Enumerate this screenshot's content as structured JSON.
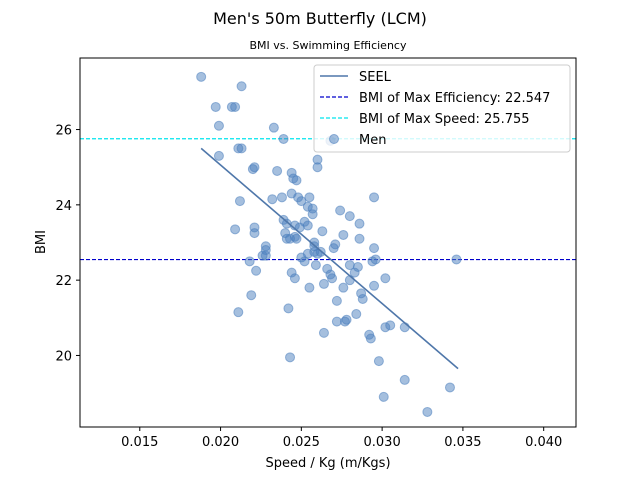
{
  "chart_data": {
    "type": "scatter",
    "title": "Men's 50m Butterfly (LCM)",
    "subtitle": "BMI vs. Swimming Efficiency",
    "xlabel": "Speed / Kg (m/Kgs)",
    "ylabel": "BMI",
    "xlim": [
      0.0113,
      0.042
    ],
    "ylim": [
      18.1,
      27.9
    ],
    "xticks": [
      "0.015",
      "0.020",
      "0.025",
      "0.030",
      "0.035",
      "0.040"
    ],
    "xtick_values": [
      0.015,
      0.02,
      0.025,
      0.03,
      0.035,
      0.04
    ],
    "yticks": [
      "20",
      "22",
      "24",
      "26"
    ],
    "ytick_values": [
      20,
      22,
      24,
      26
    ],
    "grid": false,
    "legend_position": "top-right",
    "legend": [
      {
        "label": "SEEL",
        "kind": "line",
        "color": "#4f77aa"
      },
      {
        "label": "BMI of Max Efficiency: 22.547",
        "kind": "dashed-line",
        "color": "#0000cc"
      },
      {
        "label": "BMI of Max Speed: 25.755",
        "kind": "dashed-line",
        "color": "#00e5ee"
      },
      {
        "label": "Men",
        "kind": "marker",
        "color": "#4c7fbe"
      }
    ],
    "seel_line": {
      "x": [
        0.0188,
        0.0347
      ],
      "y": [
        25.5,
        19.65
      ],
      "color": "#4f77aa"
    },
    "hlines": [
      {
        "y": 22.547,
        "color": "#0000cc"
      },
      {
        "y": 25.755,
        "color": "#00e5ee"
      }
    ],
    "series": [
      {
        "name": "Men",
        "color": "#4c7fbe",
        "points": [
          [
            0.0188,
            27.4
          ],
          [
            0.0197,
            26.6
          ],
          [
            0.0199,
            26.1
          ],
          [
            0.0207,
            26.6
          ],
          [
            0.0209,
            26.6
          ],
          [
            0.0213,
            27.15
          ],
          [
            0.0199,
            25.3
          ],
          [
            0.0211,
            25.5
          ],
          [
            0.0213,
            25.5
          ],
          [
            0.0233,
            26.05
          ],
          [
            0.0239,
            25.75
          ],
          [
            0.0268,
            25.7
          ],
          [
            0.026,
            25.2
          ],
          [
            0.026,
            25.0
          ],
          [
            0.022,
            24.95
          ],
          [
            0.0221,
            25.0
          ],
          [
            0.0235,
            24.9
          ],
          [
            0.0244,
            24.85
          ],
          [
            0.0245,
            24.7
          ],
          [
            0.0247,
            24.65
          ],
          [
            0.0238,
            24.2
          ],
          [
            0.0244,
            24.3
          ],
          [
            0.0248,
            24.2
          ],
          [
            0.025,
            24.1
          ],
          [
            0.0255,
            24.2
          ],
          [
            0.0212,
            24.1
          ],
          [
            0.0232,
            24.15
          ],
          [
            0.0254,
            23.95
          ],
          [
            0.0257,
            23.9
          ],
          [
            0.0257,
            23.75
          ],
          [
            0.0274,
            23.85
          ],
          [
            0.028,
            23.7
          ],
          [
            0.0286,
            23.5
          ],
          [
            0.0295,
            24.2
          ],
          [
            0.0239,
            23.6
          ],
          [
            0.0241,
            23.5
          ],
          [
            0.0246,
            23.45
          ],
          [
            0.0249,
            23.4
          ],
          [
            0.0252,
            23.55
          ],
          [
            0.0254,
            23.45
          ],
          [
            0.0263,
            23.3
          ],
          [
            0.0276,
            23.2
          ],
          [
            0.0286,
            23.1
          ],
          [
            0.0209,
            23.35
          ],
          [
            0.0221,
            23.4
          ],
          [
            0.0221,
            23.25
          ],
          [
            0.024,
            23.25
          ],
          [
            0.0241,
            23.1
          ],
          [
            0.0243,
            23.1
          ],
          [
            0.0246,
            23.15
          ],
          [
            0.0247,
            23.1
          ],
          [
            0.0258,
            23.0
          ],
          [
            0.0258,
            22.9
          ],
          [
            0.0228,
            22.9
          ],
          [
            0.0228,
            22.8
          ],
          [
            0.0271,
            22.95
          ],
          [
            0.027,
            22.85
          ],
          [
            0.0295,
            22.85
          ],
          [
            0.0226,
            22.65
          ],
          [
            0.0228,
            22.65
          ],
          [
            0.025,
            22.6
          ],
          [
            0.0252,
            22.5
          ],
          [
            0.0254,
            22.7
          ],
          [
            0.0258,
            22.75
          ],
          [
            0.026,
            22.7
          ],
          [
            0.0262,
            22.75
          ],
          [
            0.0294,
            22.5
          ],
          [
            0.0296,
            22.55
          ],
          [
            0.0346,
            22.55
          ],
          [
            0.0218,
            22.5
          ],
          [
            0.0259,
            22.4
          ],
          [
            0.0266,
            22.3
          ],
          [
            0.028,
            22.4
          ],
          [
            0.0285,
            22.35
          ],
          [
            0.0222,
            22.25
          ],
          [
            0.0244,
            22.2
          ],
          [
            0.0246,
            22.05
          ],
          [
            0.0268,
            22.15
          ],
          [
            0.0269,
            22.05
          ],
          [
            0.0264,
            21.9
          ],
          [
            0.028,
            22.0
          ],
          [
            0.0283,
            22.2
          ],
          [
            0.0302,
            22.05
          ],
          [
            0.0219,
            21.6
          ],
          [
            0.0255,
            21.8
          ],
          [
            0.0276,
            21.8
          ],
          [
            0.0287,
            21.65
          ],
          [
            0.0295,
            21.85
          ],
          [
            0.0272,
            21.45
          ],
          [
            0.0288,
            21.5
          ],
          [
            0.0242,
            21.25
          ],
          [
            0.0284,
            21.1
          ],
          [
            0.0211,
            21.15
          ],
          [
            0.0272,
            20.9
          ],
          [
            0.0277,
            20.9
          ],
          [
            0.0278,
            20.95
          ],
          [
            0.0302,
            20.75
          ],
          [
            0.0305,
            20.8
          ],
          [
            0.0314,
            20.75
          ],
          [
            0.0264,
            20.6
          ],
          [
            0.0292,
            20.55
          ],
          [
            0.0293,
            20.45
          ],
          [
            0.0243,
            19.95
          ],
          [
            0.0298,
            19.85
          ],
          [
            0.0314,
            19.35
          ],
          [
            0.0342,
            19.15
          ],
          [
            0.0301,
            18.9
          ],
          [
            0.0328,
            18.5
          ]
        ]
      }
    ]
  }
}
